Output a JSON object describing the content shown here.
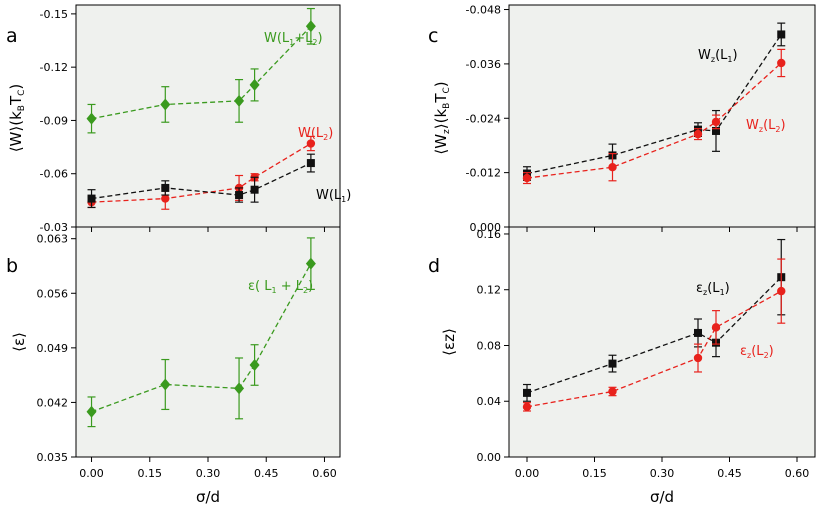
{
  "chart_data": [
    {
      "id": "a",
      "type": "line",
      "panel_letter": "a",
      "ylabel": "⟨W⟩(kBTC)",
      "ylabel_parts": {
        "open": "⟨W⟩(k",
        "sub1": "B",
        "mid": "T",
        "sub2": "C",
        "close": ")"
      },
      "ylim": [
        -0.03,
        -0.155
      ],
      "yticks": [
        "-0.15",
        "-0.12",
        "-0.09",
        "-0.06",
        "-0.03"
      ],
      "ytick_values": [
        -0.15,
        -0.12,
        -0.09,
        -0.06,
        -0.03
      ],
      "xlim": [
        -0.04,
        0.64
      ],
      "x": [
        0.0,
        0.19,
        0.38,
        0.42,
        0.565
      ],
      "series": [
        {
          "name": "W(L1+L2)",
          "color": "#3a9a1e",
          "marker": "diamond",
          "values": [
            -0.091,
            -0.099,
            -0.101,
            -0.11,
            -0.143
          ],
          "errors": [
            0.008,
            0.01,
            0.012,
            0.009,
            0.01
          ],
          "label": {
            "pre": "W(L",
            "s1": "1",
            "mid": "+L",
            "s2": "2",
            "post": ")"
          }
        },
        {
          "name": "W(L2)",
          "color": "#e8221c",
          "marker": "circle",
          "values": [
            -0.044,
            -0.046,
            -0.052,
            -0.058,
            -0.077
          ],
          "errors": [
            0.003,
            0.006,
            0.007,
            0.002,
            0.004
          ],
          "label": {
            "pre": "W(L",
            "s1": "2",
            "post": ")"
          }
        },
        {
          "name": "W(L1)",
          "color": "#111111",
          "marker": "square",
          "values": [
            -0.046,
            -0.052,
            -0.048,
            -0.051,
            -0.066
          ],
          "errors": [
            0.005,
            0.004,
            0.004,
            0.007,
            0.005
          ],
          "label": {
            "pre": "W(L",
            "s1": "1",
            "post": ")"
          }
        }
      ]
    },
    {
      "id": "b",
      "type": "line",
      "panel_letter": "b",
      "ylabel": "⟨ε⟩",
      "ylim": [
        0.035,
        0.0645
      ],
      "yticks": [
        "0.063",
        "0.056",
        "0.049",
        "0.042",
        "0.035"
      ],
      "ytick_values": [
        0.063,
        0.056,
        0.049,
        0.042,
        0.035
      ],
      "xlim": [
        -0.04,
        0.64
      ],
      "xticks": [
        "0.00",
        "0.15",
        "0.30",
        "0.45",
        "0.60"
      ],
      "xtick_values": [
        0.0,
        0.15,
        0.3,
        0.45,
        0.6
      ],
      "xlabel": "σ/d",
      "x": [
        0.0,
        0.19,
        0.38,
        0.42,
        0.565
      ],
      "series": [
        {
          "name": "ε(L1+L2)",
          "color": "#3a9a1e",
          "marker": "diamond",
          "values": [
            0.0408,
            0.0443,
            0.0438,
            0.0468,
            0.0598
          ],
          "errors": [
            0.0019,
            0.0032,
            0.0039,
            0.0026,
            0.0033
          ],
          "label": {
            "pre": "ε( L",
            "s1": "1",
            "mid": " + L",
            "s2": "2",
            "post": ")"
          }
        }
      ]
    },
    {
      "id": "c",
      "type": "line",
      "panel_letter": "c",
      "ylabel": "⟨Wz⟩(kBTC)",
      "ylabel_parts": {
        "open": "⟨W",
        "sub0": "z",
        "mid0": "⟩(k",
        "sub1": "B",
        "mid": "T",
        "sub2": "C",
        "close": ")"
      },
      "ylim": [
        0.0,
        -0.049
      ],
      "yticks": [
        "-0.048",
        "-0.036",
        "-0.024",
        "-0.012",
        "0.000"
      ],
      "ytick_values": [
        -0.048,
        -0.036,
        -0.024,
        -0.012,
        0.0
      ],
      "xlim": [
        -0.04,
        0.64
      ],
      "x": [
        0.0,
        0.19,
        0.38,
        0.42,
        0.565
      ],
      "series": [
        {
          "name": "Wz(L1)",
          "color": "#111111",
          "marker": "square",
          "values": [
            -0.0118,
            -0.0158,
            -0.0215,
            -0.0212,
            -0.0425
          ],
          "errors": [
            0.0015,
            0.0025,
            0.0015,
            0.0045,
            0.0025
          ],
          "label": {
            "pre": "W",
            "s0": "z",
            "mid0": "(L",
            "s1": "1",
            "post": ")"
          }
        },
        {
          "name": "Wz(L2)",
          "color": "#e8221c",
          "marker": "circle",
          "values": [
            -0.0108,
            -0.0132,
            -0.0205,
            -0.0232,
            -0.0362
          ],
          "errors": [
            0.0012,
            0.003,
            0.0012,
            0.0015,
            0.003
          ],
          "label": {
            "pre": "W",
            "s0": "z",
            "mid0": "(L",
            "s1": "2",
            "post": ")"
          }
        }
      ]
    },
    {
      "id": "d",
      "type": "line",
      "panel_letter": "d",
      "ylabel": "⟨εz⟩",
      "ylim": [
        0.0,
        0.165
      ],
      "yticks": [
        "0.16",
        "0.12",
        "0.08",
        "0.04",
        "0.00"
      ],
      "ytick_values": [
        0.16,
        0.12,
        0.08,
        0.04,
        0.0
      ],
      "xlim": [
        -0.04,
        0.64
      ],
      "xticks": [
        "0.00",
        "0.15",
        "0.30",
        "0.45",
        "0.60"
      ],
      "xtick_values": [
        0.0,
        0.15,
        0.3,
        0.45,
        0.6
      ],
      "xlabel": "σ/d",
      "x": [
        0.0,
        0.19,
        0.38,
        0.42,
        0.565
      ],
      "series": [
        {
          "name": "εz(L1)",
          "color": "#111111",
          "marker": "square",
          "values": [
            0.046,
            0.067,
            0.089,
            0.082,
            0.129
          ],
          "errors": [
            0.006,
            0.006,
            0.01,
            0.01,
            0.027
          ],
          "label": {
            "pre": "ε",
            "s0": "z",
            "mid0": "(L",
            "s1": "1",
            "post": ")"
          }
        },
        {
          "name": "εz(L2)",
          "color": "#e8221c",
          "marker": "circle",
          "values": [
            0.036,
            0.047,
            0.071,
            0.093,
            0.119
          ],
          "errors": [
            0.003,
            0.003,
            0.01,
            0.012,
            0.023
          ],
          "label": {
            "pre": "ε",
            "s0": "z",
            "mid0": "(L",
            "s1": "2",
            "post": ")"
          }
        }
      ]
    }
  ]
}
